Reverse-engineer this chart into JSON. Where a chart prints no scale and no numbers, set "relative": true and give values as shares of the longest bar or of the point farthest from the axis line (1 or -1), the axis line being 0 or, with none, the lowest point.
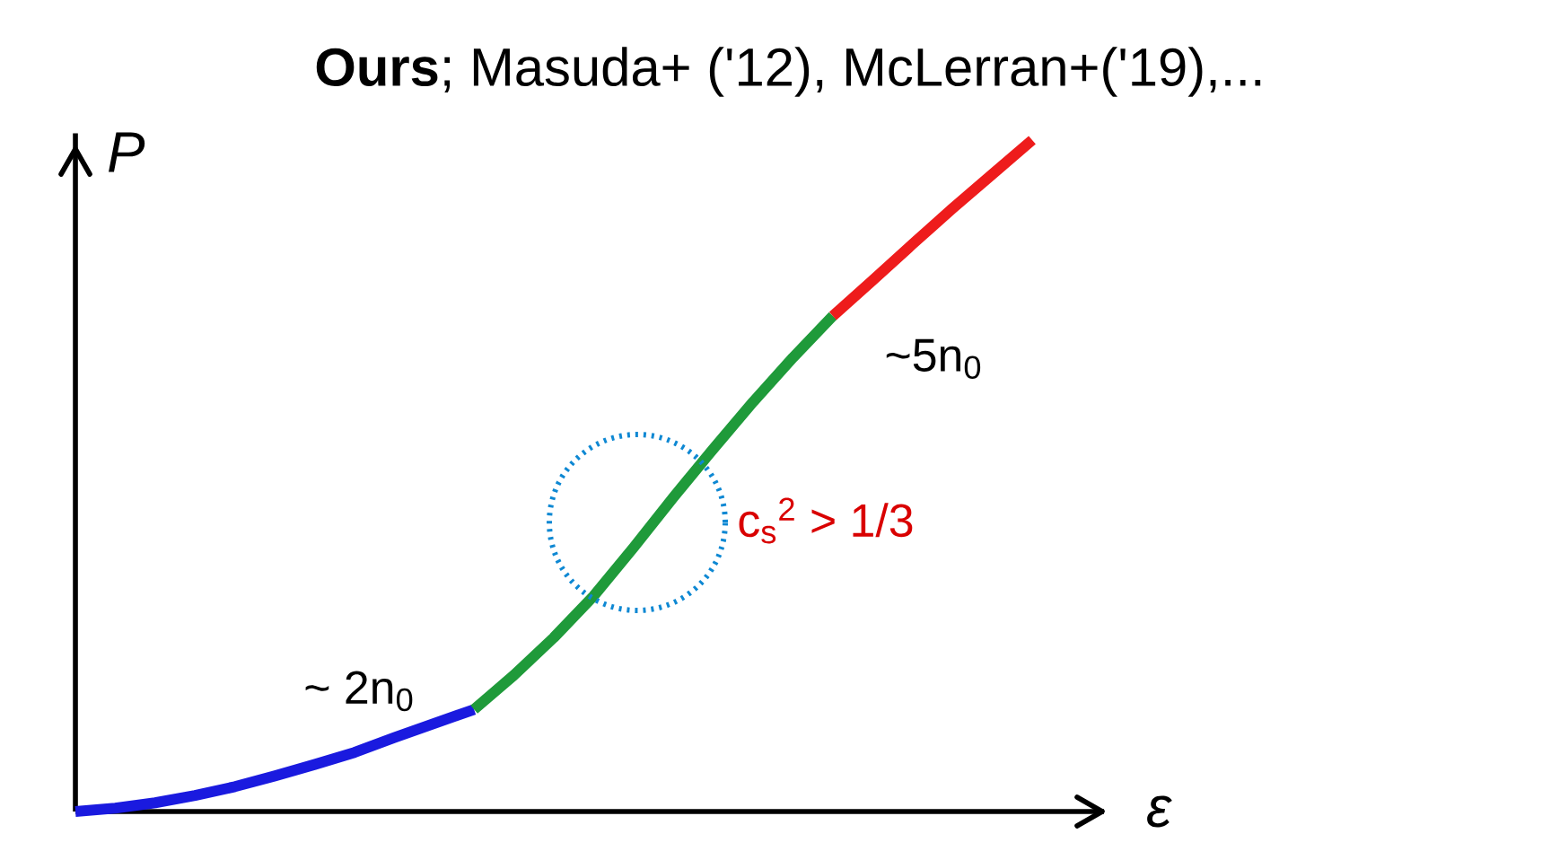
{
  "chart_data": {
    "type": "line",
    "title": "**Ours**; Masuda+ ('12), McLerran+('19),...",
    "xlabel": "ε",
    "ylabel": "P",
    "relative": true,
    "categories": [
      null,
      null,
      null,
      null,
      null,
      null,
      null,
      null,
      null,
      null,
      null,
      null,
      null,
      null,
      null,
      null,
      null,
      null,
      null,
      null,
      null,
      null,
      null,
      null,
      null
    ],
    "series": [
      {
        "color": "#1a1adf",
        "values": [
          0,
          0.005,
          0.013,
          0.024,
          0.037,
          0.053,
          0.07,
          0.088,
          0.11,
          0.131,
          0.152,
          null,
          null,
          null,
          null,
          null,
          null,
          null,
          null,
          null,
          null,
          null,
          null,
          null,
          null
        ]
      },
      {
        "color": "#1f9a3a",
        "values": [
          null,
          null,
          null,
          null,
          null,
          null,
          null,
          null,
          null,
          null,
          0.152,
          0.203,
          0.259,
          0.321,
          0.393,
          0.468,
          0.54,
          0.61,
          0.676,
          0.738,
          null,
          null,
          null,
          null,
          null
        ]
      },
      {
        "color": "#ee1c1c",
        "values": [
          null,
          null,
          null,
          null,
          null,
          null,
          null,
          null,
          null,
          null,
          null,
          null,
          null,
          null,
          null,
          null,
          null,
          null,
          null,
          0.738,
          0.791,
          0.845,
          0.898,
          0.949,
          1
        ]
      }
    ],
    "annotations": [
      "~ 2n$_{0}$",
      "~5n$_{0}$",
      "c$_{s}$$^{2}$ > 1/3"
    ]
  }
}
